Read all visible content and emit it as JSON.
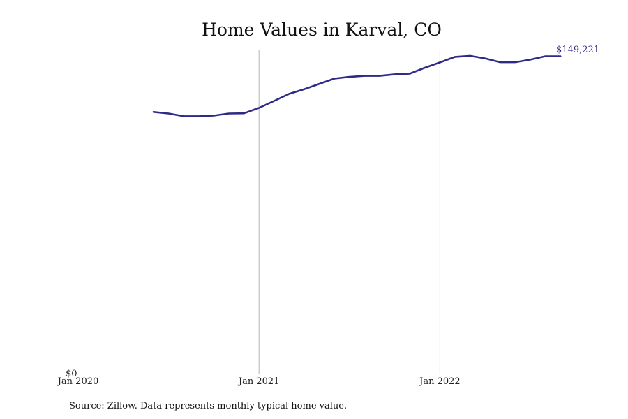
{
  "chart_data": {
    "type": "line",
    "title": "Home Values in Karval, CO",
    "xlabel": "",
    "ylabel": "",
    "x_ticks": [
      {
        "date": "2020-01",
        "label": "Jan 2020"
      },
      {
        "date": "2021-01",
        "label": "Jan 2021"
      },
      {
        "date": "2022-01",
        "label": "Jan 2022"
      }
    ],
    "y_ticks": [
      {
        "value": 0,
        "label": "$0"
      }
    ],
    "ylim": [
      0,
      152000
    ],
    "x_range": [
      "2020-01",
      "2022-10"
    ],
    "grid": "vertical at x ticks",
    "legend": "none",
    "end_label": "$149,221",
    "color": "#2e2a86",
    "series": [
      {
        "x": [
          "2020-06",
          "2020-07",
          "2020-08",
          "2020-09",
          "2020-10",
          "2020-11",
          "2020-12",
          "2021-01",
          "2021-02",
          "2021-03",
          "2021-04",
          "2021-05",
          "2021-06",
          "2021-07",
          "2021-08",
          "2021-09",
          "2021-10",
          "2021-11",
          "2021-12",
          "2022-01",
          "2022-02",
          "2022-03",
          "2022-04",
          "2022-05",
          "2022-06",
          "2022-07",
          "2022-08",
          "2022-09"
        ],
        "values": [
          123000,
          122300,
          121000,
          121000,
          121300,
          122300,
          122400,
          124900,
          128200,
          131500,
          133700,
          136200,
          138700,
          139500,
          140000,
          140000,
          140700,
          141000,
          143800,
          146300,
          148900,
          149400,
          148200,
          146400,
          146400,
          147600,
          149221,
          149221
        ]
      }
    ]
  },
  "footer": {
    "source": "Source: Zillow. Data represents monthly typical home value."
  }
}
